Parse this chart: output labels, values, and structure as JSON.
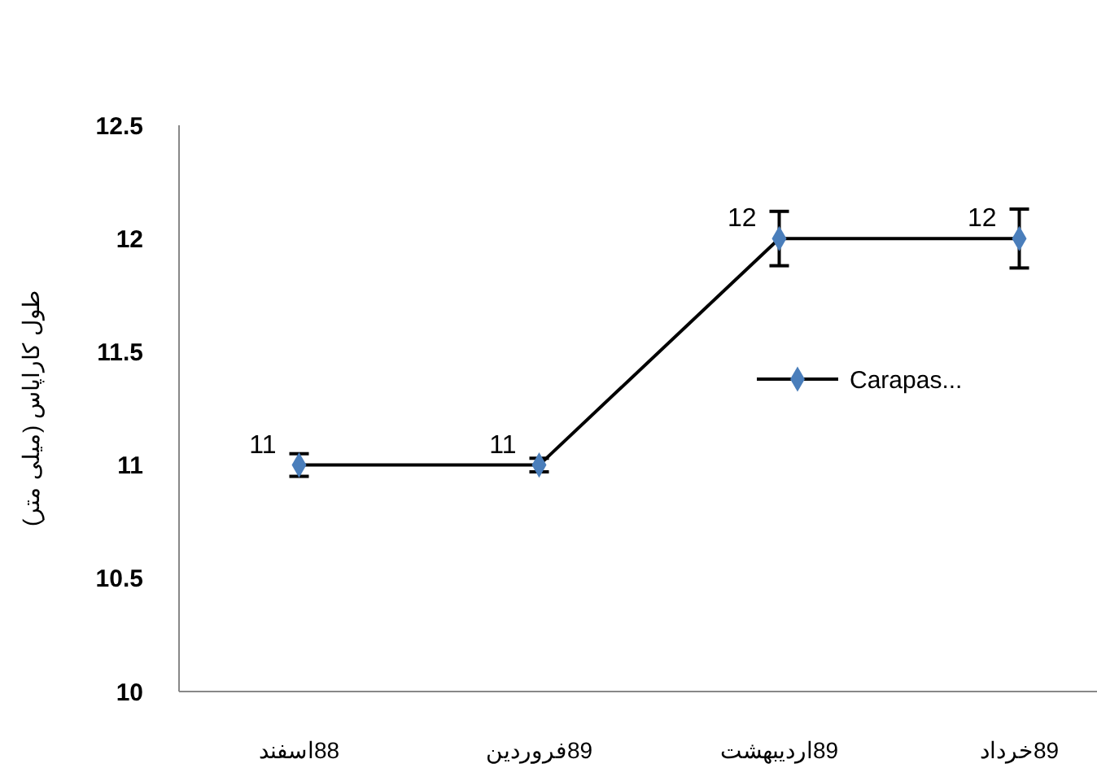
{
  "chart_data": {
    "type": "line",
    "ylabel": "طول کاراپاس (میلی متر)",
    "categories": [
      "88اسفند",
      "89فروردین",
      "89اردیبهشت",
      "89خرداد"
    ],
    "series": [
      {
        "name": "Carapas...",
        "color": "#4a7ebb",
        "values": [
          11,
          11,
          12,
          12
        ],
        "errors": [
          0.05,
          0.03,
          0.12,
          0.13
        ]
      }
    ],
    "ylim": [
      10,
      12.5
    ],
    "yticks": [
      10,
      10.5,
      11,
      11.5,
      12,
      12.5
    ],
    "data_labels": true,
    "legend": "right",
    "marker": "diamond",
    "line_style": "solid"
  }
}
